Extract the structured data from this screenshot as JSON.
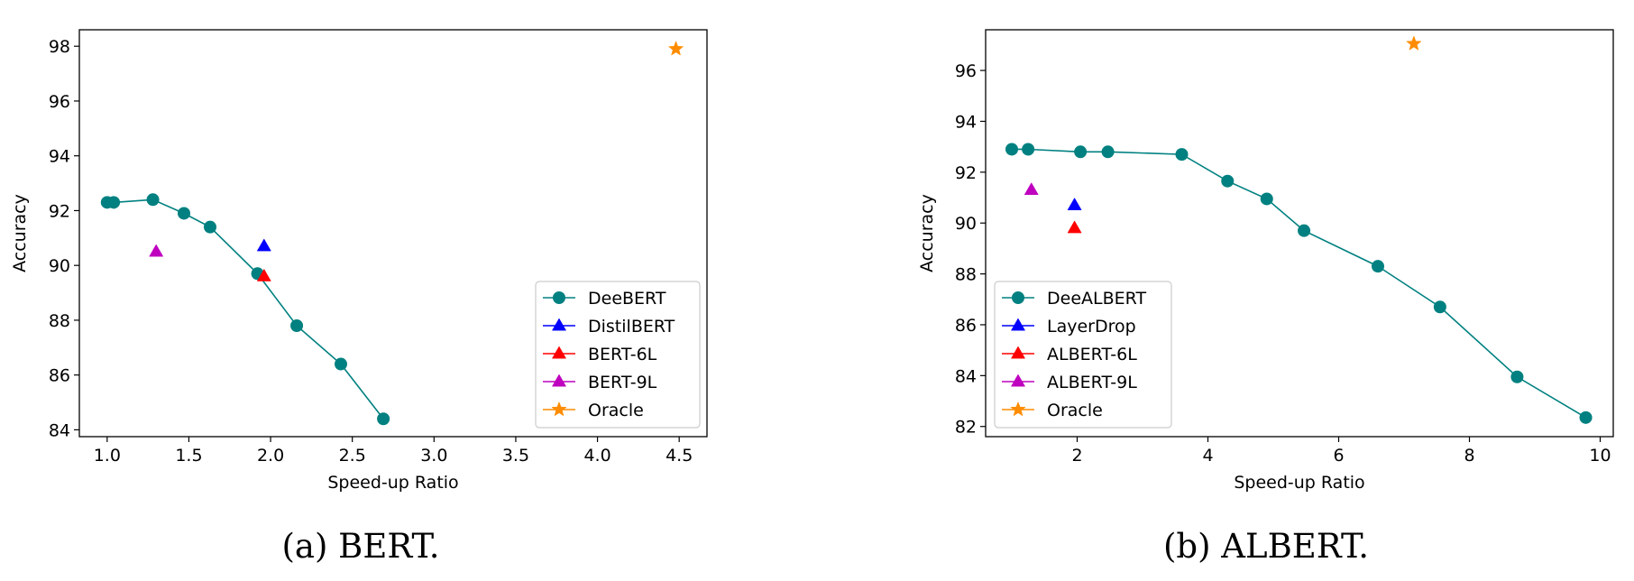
{
  "captions": [
    "(a) BERT.",
    "(b) ALBERT."
  ],
  "chart_data": [
    {
      "type": "line",
      "xlabel": "Speed-up Ratio",
      "ylabel": "Accuracy",
      "xlim": [
        0.83,
        4.67
      ],
      "ylim": [
        83.75,
        98.6
      ],
      "xticks": [
        "1.0",
        "1.5",
        "2.0",
        "2.5",
        "3.0",
        "3.5",
        "4.0",
        "4.5"
      ],
      "yticks": [
        "84",
        "86",
        "88",
        "90",
        "92",
        "94",
        "96",
        "98"
      ],
      "legend_position": "lower-right",
      "series": [
        {
          "name": "DeeBERT",
          "marker": "circle",
          "line": true,
          "color": "#008080",
          "points": [
            [
              1.0,
              92.3
            ],
            [
              1.04,
              92.3
            ],
            [
              1.28,
              92.4
            ],
            [
              1.47,
              91.9
            ],
            [
              1.63,
              91.4
            ],
            [
              1.92,
              89.7
            ],
            [
              2.16,
              87.8
            ],
            [
              2.43,
              86.4
            ],
            [
              2.69,
              84.4
            ]
          ]
        },
        {
          "name": "DistilBERT",
          "marker": "triangle",
          "line": false,
          "color": "#0000ff",
          "points": [
            [
              1.96,
              90.7
            ]
          ]
        },
        {
          "name": "BERT-6L",
          "marker": "triangle",
          "line": false,
          "color": "#ff0000",
          "points": [
            [
              1.96,
              89.6
            ]
          ]
        },
        {
          "name": "BERT-9L",
          "marker": "triangle",
          "line": false,
          "color": "#bf00bf",
          "points": [
            [
              1.3,
              90.5
            ]
          ]
        },
        {
          "name": "Oracle",
          "marker": "star",
          "line": false,
          "color": "#ff8c00",
          "points": [
            [
              4.48,
              97.9
            ]
          ]
        }
      ]
    },
    {
      "type": "line",
      "xlabel": "Speed-up Ratio",
      "ylabel": "Accuracy",
      "xlim": [
        0.6,
        10.2
      ],
      "ylim": [
        81.6,
        97.6
      ],
      "xticks": [
        "2",
        "4",
        "6",
        "8",
        "10"
      ],
      "yticks": [
        "82",
        "84",
        "86",
        "88",
        "90",
        "92",
        "94",
        "96"
      ],
      "legend_position": "lower-left",
      "series": [
        {
          "name": "DeeALBERT",
          "marker": "circle",
          "line": true,
          "color": "#008080",
          "points": [
            [
              1.0,
              92.9
            ],
            [
              1.25,
              92.9
            ],
            [
              2.05,
              92.8
            ],
            [
              2.47,
              92.8
            ],
            [
              3.6,
              92.7
            ],
            [
              4.3,
              91.65
            ],
            [
              4.9,
              90.95
            ],
            [
              5.47,
              89.7
            ],
            [
              6.6,
              88.3
            ],
            [
              7.55,
              86.7
            ],
            [
              8.73,
              83.95
            ],
            [
              9.78,
              82.35
            ]
          ]
        },
        {
          "name": "LayerDrop",
          "marker": "triangle",
          "line": false,
          "color": "#0000ff",
          "points": [
            [
              1.96,
              90.7
            ]
          ]
        },
        {
          "name": "ALBERT-6L",
          "marker": "triangle",
          "line": false,
          "color": "#ff0000",
          "points": [
            [
              1.96,
              89.8
            ]
          ]
        },
        {
          "name": "ALBERT-9L",
          "marker": "triangle",
          "line": false,
          "color": "#bf00bf",
          "points": [
            [
              1.3,
              91.3
            ]
          ]
        },
        {
          "name": "Oracle",
          "marker": "star",
          "line": false,
          "color": "#ff8c00",
          "points": [
            [
              7.15,
              97.05
            ]
          ]
        }
      ]
    }
  ]
}
